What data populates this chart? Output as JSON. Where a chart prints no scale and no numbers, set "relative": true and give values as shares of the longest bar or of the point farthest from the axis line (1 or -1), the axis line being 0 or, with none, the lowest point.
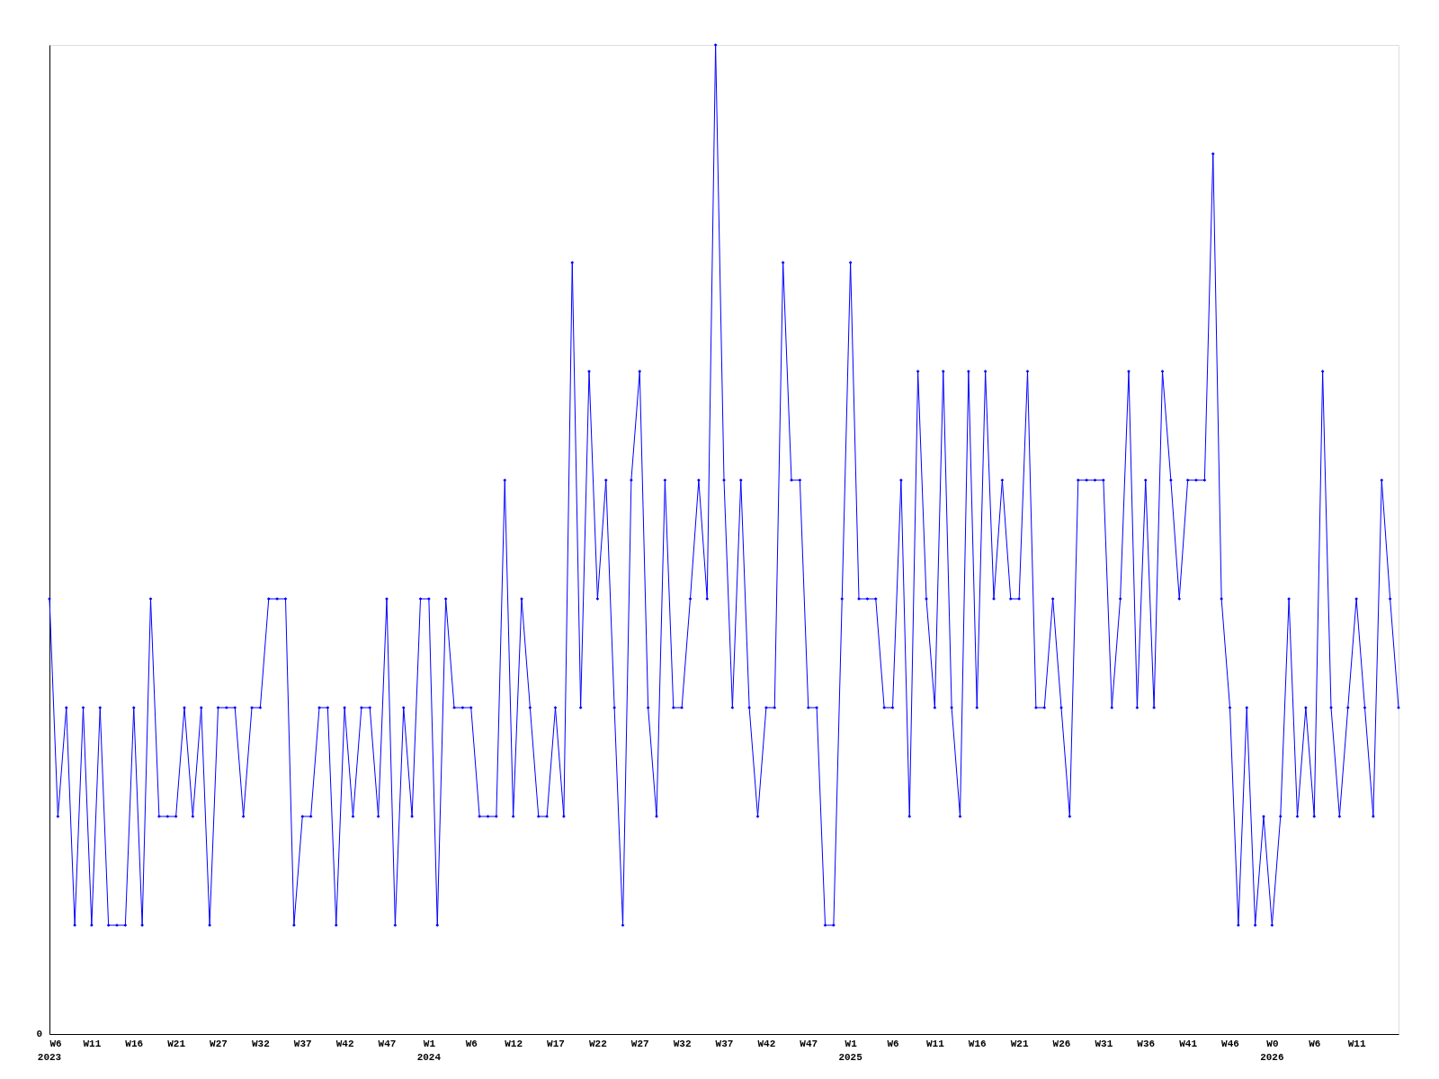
{
  "chart_data": {
    "type": "line",
    "relative": true,
    "color": "#0000ff",
    "marker": "diamond",
    "line_style": "solid",
    "grid": false,
    "categories": [
      "W6\n2023",
      null,
      null,
      null,
      null,
      "W11",
      null,
      null,
      null,
      null,
      "W16",
      null,
      null,
      null,
      null,
      "W21",
      null,
      null,
      null,
      null,
      "W27",
      null,
      null,
      null,
      null,
      "W32",
      null,
      null,
      null,
      null,
      "W37",
      null,
      null,
      null,
      null,
      "W42",
      null,
      null,
      null,
      null,
      "W47",
      null,
      null,
      null,
      null,
      "W1\n2024",
      null,
      null,
      null,
      null,
      "W6",
      null,
      null,
      null,
      null,
      "W12",
      null,
      null,
      null,
      null,
      "W17",
      null,
      null,
      null,
      null,
      "W22",
      null,
      null,
      null,
      null,
      "W27",
      null,
      null,
      null,
      null,
      "W32",
      null,
      null,
      null,
      null,
      "W37",
      null,
      null,
      null,
      null,
      "W42",
      null,
      null,
      null,
      null,
      "W47",
      null,
      null,
      null,
      null,
      "W1\n2025",
      null,
      null,
      null,
      null,
      "W6",
      null,
      null,
      null,
      null,
      "W11",
      null,
      null,
      null,
      null,
      "W16",
      null,
      null,
      null,
      null,
      "W21",
      null,
      null,
      null,
      null,
      "W26",
      null,
      null,
      null,
      null,
      "W31",
      null,
      null,
      null,
      null,
      "W36",
      null,
      null,
      null,
      null,
      "W41",
      null,
      null,
      null,
      null,
      "W46",
      null,
      null,
      null,
      null,
      "W0\n2026",
      null,
      null,
      null,
      null,
      "W6",
      null,
      null,
      null,
      null,
      "W11",
      null,
      null,
      null,
      null,
      null
    ],
    "values": [
      0.44,
      0.22,
      0.33,
      0.11,
      0.33,
      0.11,
      0.33,
      0.11,
      0.11,
      0.11,
      0.33,
      0.11,
      0.44,
      0.22,
      0.22,
      0.22,
      0.33,
      0.22,
      0.33,
      0.11,
      0.33,
      0.33,
      0.33,
      0.22,
      0.33,
      0.33,
      0.44,
      0.44,
      0.44,
      0.11,
      0.22,
      0.22,
      0.33,
      0.33,
      0.11,
      0.33,
      0.22,
      0.33,
      0.33,
      0.22,
      0.44,
      0.11,
      0.33,
      0.22,
      0.44,
      0.44,
      0.11,
      0.44,
      0.33,
      0.33,
      0.33,
      0.22,
      0.22,
      0.22,
      0.56,
      0.22,
      0.44,
      0.33,
      0.22,
      0.22,
      0.33,
      0.22,
      0.78,
      0.33,
      0.67,
      0.44,
      0.56,
      0.33,
      0.11,
      0.56,
      0.67,
      0.33,
      0.22,
      0.56,
      0.33,
      0.33,
      0.44,
      0.56,
      0.44,
      1,
      0.56,
      0.33,
      0.56,
      0.33,
      0.22,
      0.33,
      0.33,
      0.78,
      0.56,
      0.56,
      0.33,
      0.33,
      0.11,
      0.11,
      0.44,
      0.78,
      0.44,
      0.44,
      0.44,
      0.33,
      0.33,
      0.56,
      0.22,
      0.67,
      0.44,
      0.33,
      0.67,
      0.33,
      0.22,
      0.67,
      0.33,
      0.67,
      0.44,
      0.56,
      0.44,
      0.44,
      0.67,
      0.33,
      0.33,
      0.44,
      0.33,
      0.22,
      0.56,
      0.56,
      0.56,
      0.56,
      0.33,
      0.44,
      0.67,
      0.33,
      0.56,
      0.33,
      0.67,
      0.56,
      0.44,
      0.56,
      0.56,
      0.56,
      0.89,
      0.44,
      0.33,
      0.11,
      0.33,
      0.11,
      0.22,
      0.11,
      0.22,
      0.44,
      0.22,
      0.33,
      0.22,
      0.67,
      0.33,
      0.22,
      0.33,
      0.44,
      0.33,
      0.22,
      0.56,
      0.44,
      0.33
    ],
    "annotations": [
      "0"
    ]
  }
}
